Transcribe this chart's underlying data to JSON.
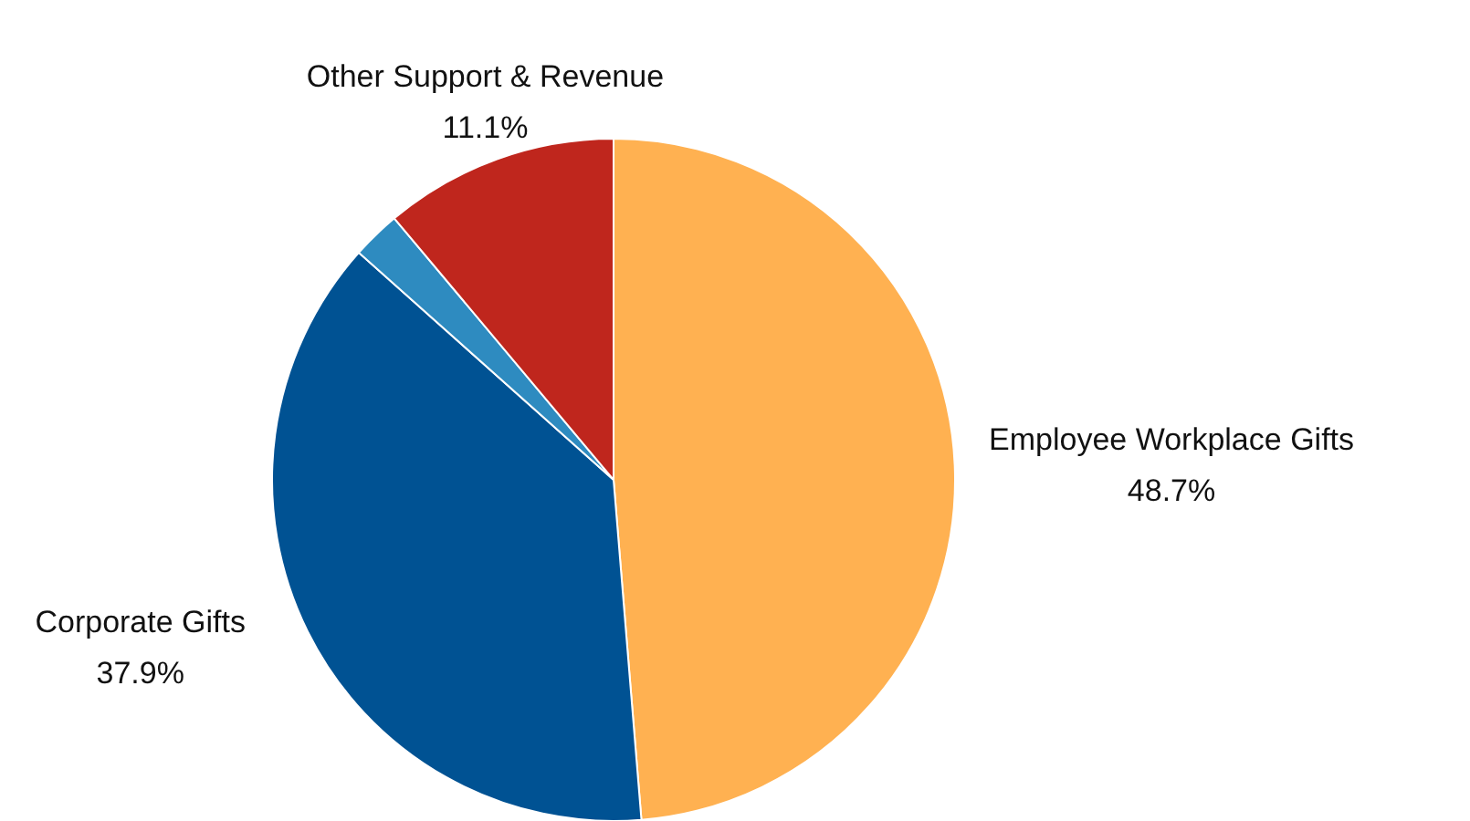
{
  "chart_data": {
    "type": "pie",
    "categories": [
      "Employee Workplace Gifts",
      "Corporate Gifts",
      null,
      "Other Support & Revenue"
    ],
    "values": [
      48.7,
      37.9,
      2.3,
      11.1
    ],
    "colors": [
      "#ffb151",
      "#005293",
      "#2e8bc0",
      "#bf261d"
    ],
    "value_labels": [
      "48.7%",
      "37.9%",
      null,
      "11.1%"
    ]
  }
}
